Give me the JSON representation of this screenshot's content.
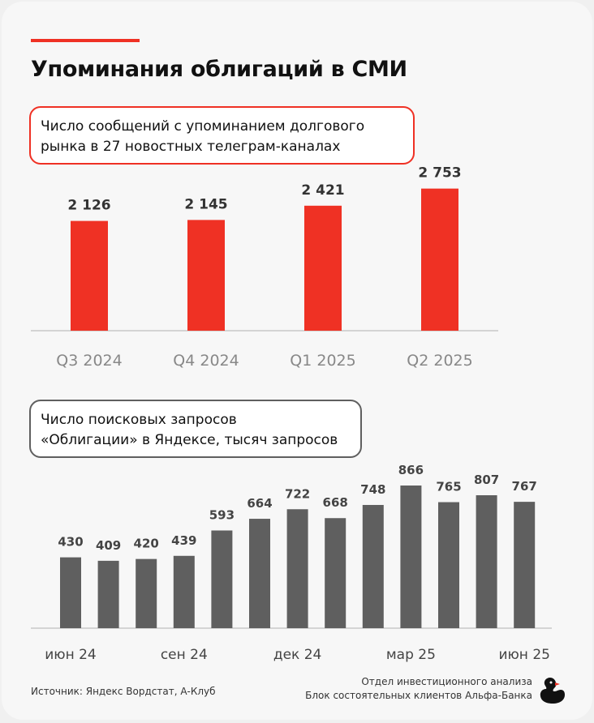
{
  "title": "Упоминания облигаций в СМИ",
  "chart_data": [
    {
      "type": "bar",
      "subtitle_lines": [
        "Число сообщений с упоминанием долгового",
        "рынка в 27 новостных телеграм-каналах"
      ],
      "categories": [
        "Q3 2024",
        "Q4 2024",
        "Q1 2025",
        "Q2 2025"
      ],
      "values": [
        2126,
        2145,
        2421,
        2753
      ],
      "value_labels": [
        "2 126",
        "2 145",
        "2 421",
        "2 753"
      ],
      "ylim": [
        0,
        3000
      ],
      "grid": false,
      "color": "#ef3124"
    },
    {
      "type": "bar",
      "subtitle_lines": [
        "Число поисковых запросов",
        "«Облигации» в Яндексе, тысяч запросов"
      ],
      "values": [
        430,
        409,
        420,
        439,
        593,
        664,
        722,
        668,
        748,
        866,
        765,
        807,
        767
      ],
      "tick_labels": [
        "июн 24",
        "сен 24",
        "дек 24",
        "мар 25",
        "июн 25"
      ],
      "tick_at_index": [
        0,
        3,
        6,
        9,
        12
      ],
      "ylim": [
        0,
        1000
      ],
      "grid": false,
      "color": "#5f5f5f"
    }
  ],
  "footer": {
    "source": "Источник: Яндекс Вордстат, А-Клуб",
    "dept_line1": "Отдел инвестиционного анализа",
    "dept_line2": "Блок состоятельных клиентов Альфа-Банка"
  },
  "icons": {
    "logo": "rubber-duck-icon"
  },
  "colors": {
    "accent": "#ef3124",
    "dark_bar": "#5f5f5f"
  }
}
